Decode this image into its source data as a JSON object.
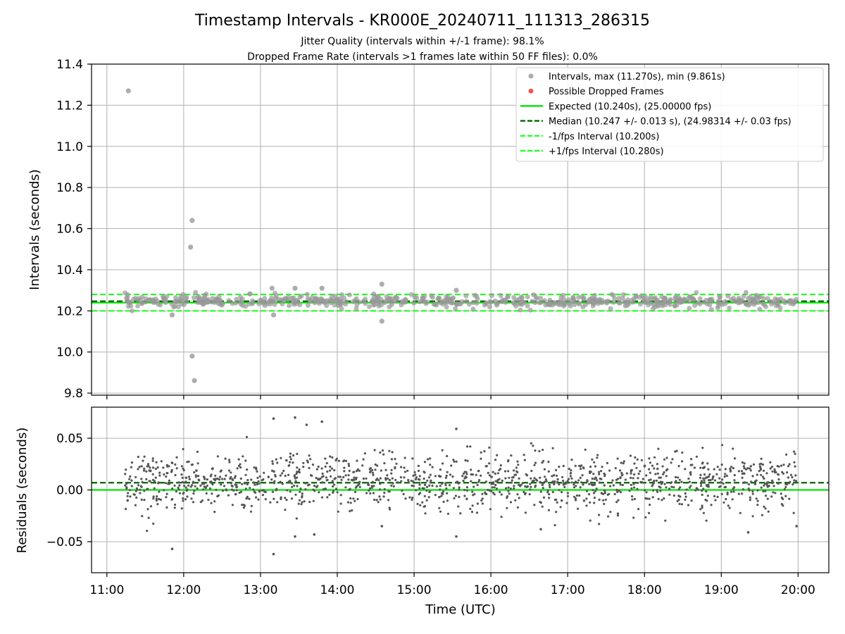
{
  "chart_data": {
    "title": "Timestamp Intervals - KR000E_20240711_111313_286315",
    "subtitle_lines": [
      "Jitter Quality (intervals within +/-1 frame): 98.1%",
      "Dropped Frame Rate (intervals >1 frames late within 50 FF files): 0.0%"
    ],
    "xlabel": "Time (UTC)",
    "x_ticks": [
      "11:00",
      "12:00",
      "13:00",
      "14:00",
      "15:00",
      "16:00",
      "17:00",
      "18:00",
      "19:00",
      "20:00"
    ],
    "x_range_hours": [
      10.8,
      20.4
    ],
    "grid": true,
    "legend_position": "top-right",
    "colors": {
      "points": "#999999",
      "dropped": "#ee4444",
      "expected": "#00e400",
      "median": "#006400",
      "interval_lines": "#22ff22",
      "residual_points": "#555555"
    },
    "panels": [
      {
        "id": "intervals",
        "type": "scatter",
        "ylabel": "Intervals (seconds)",
        "ylim": [
          9.79,
          11.4
        ],
        "y_ticks": [
          "9.8",
          "10.0",
          "10.2",
          "10.4",
          "10.6",
          "10.8",
          "11.0",
          "11.2",
          "11.4"
        ],
        "y_tick_values": [
          9.8,
          10.0,
          10.2,
          10.4,
          10.6,
          10.8,
          11.0,
          11.2,
          11.4
        ],
        "bulk": {
          "x_start": 11.23,
          "x_end": 19.98,
          "center": 10.247,
          "spread": 0.025,
          "count": 600
        },
        "outliers": [
          {
            "x": 11.28,
            "y": 11.27
          },
          {
            "x": 12.11,
            "y": 10.64
          },
          {
            "x": 12.09,
            "y": 10.51
          },
          {
            "x": 12.11,
            "y": 9.98
          },
          {
            "x": 12.14,
            "y": 9.861
          },
          {
            "x": 14.58,
            "y": 10.33
          },
          {
            "x": 14.58,
            "y": 10.15
          },
          {
            "x": 13.17,
            "y": 10.18
          },
          {
            "x": 11.85,
            "y": 10.18
          },
          {
            "x": 13.15,
            "y": 10.31
          },
          {
            "x": 13.45,
            "y": 10.31
          },
          {
            "x": 13.8,
            "y": 10.31
          },
          {
            "x": 15.55,
            "y": 10.3
          }
        ],
        "lines": [
          {
            "name": "Expected (10.240s), (25.00000 fps)",
            "y": 10.24,
            "style": "solid",
            "color": "#00e400"
          },
          {
            "name": "Median (10.247 +/- 0.013 s), (24.98314 +/- 0.03 fps)",
            "y": 10.247,
            "style": "dashed",
            "color": "#006400"
          },
          {
            "name": "-1/fps Interval (10.200s)",
            "y": 10.2,
            "style": "dashed",
            "color": "#22ff22"
          },
          {
            "name": "+1/fps Interval (10.280s)",
            "y": 10.28,
            "style": "dashed",
            "color": "#22ff22"
          }
        ],
        "legend": [
          {
            "label": "Intervals, max (11.270s), min (9.861s)",
            "kind": "dot",
            "color": "#aaaaaa"
          },
          {
            "label": "Possible Dropped Frames",
            "kind": "dot",
            "color": "#ee5555"
          },
          {
            "label": "Expected (10.240s), (25.00000 fps)",
            "kind": "solid",
            "color": "#00e400"
          },
          {
            "label": "Median (10.247 +/- 0.013 s), (24.98314 +/- 0.03 fps)",
            "kind": "dashed",
            "color": "#006400"
          },
          {
            "label": "-1/fps Interval (10.200s)",
            "kind": "dashed",
            "color": "#22ff22"
          },
          {
            "label": "+1/fps Interval (10.280s)",
            "kind": "dashed",
            "color": "#22ff22"
          }
        ]
      },
      {
        "id": "residuals",
        "type": "scatter",
        "ylabel": "Residuals (seconds)",
        "ylim": [
          -0.08,
          0.08
        ],
        "y_ticks": [
          "−0.05",
          "0.00",
          "0.05"
        ],
        "y_tick_values": [
          -0.05,
          0.0,
          0.05
        ],
        "bulk": {
          "x_start": 11.23,
          "x_end": 19.98,
          "center": 0.007,
          "spread": 0.014,
          "count": 1400
        },
        "outliers": [
          {
            "x": 11.85,
            "y": -0.057
          },
          {
            "x": 13.17,
            "y": -0.062
          },
          {
            "x": 13.17,
            "y": 0.069
          },
          {
            "x": 13.45,
            "y": 0.07
          },
          {
            "x": 13.6,
            "y": 0.063
          },
          {
            "x": 13.8,
            "y": 0.066
          },
          {
            "x": 15.55,
            "y": 0.059
          },
          {
            "x": 15.55,
            "y": -0.045
          },
          {
            "x": 13.45,
            "y": -0.045
          },
          {
            "x": 13.7,
            "y": -0.043
          },
          {
            "x": 14.58,
            "y": -0.035
          },
          {
            "x": 16.65,
            "y": -0.038
          },
          {
            "x": 19.35,
            "y": -0.041
          },
          {
            "x": 19.98,
            "y": -0.035
          }
        ],
        "lines": [
          {
            "name": "expected",
            "y": 0.0,
            "style": "solid",
            "color": "#00e400"
          },
          {
            "name": "median",
            "y": 0.007,
            "style": "dashed",
            "color": "#006400"
          }
        ]
      }
    ]
  }
}
